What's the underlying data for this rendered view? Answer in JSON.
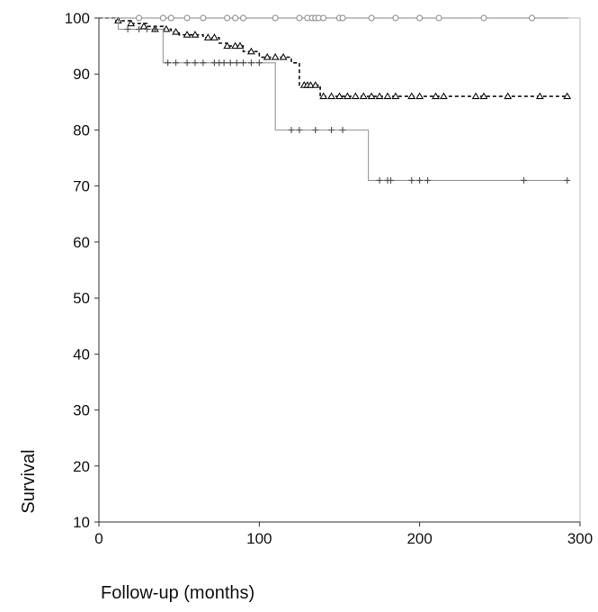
{
  "chart_data": {
    "type": "line",
    "subtype": "kaplan-meier",
    "title": "",
    "xlabel": "Follow-up (months)",
    "ylabel": "Survival",
    "xlim": [
      0,
      300
    ],
    "ylim": [
      10,
      100
    ],
    "xticks": [
      "0",
      "100",
      "200",
      "300"
    ],
    "yticks": [
      "10",
      "20",
      "30",
      "40",
      "50",
      "60",
      "70",
      "80",
      "90",
      "100"
    ],
    "grid": false,
    "legend": "none",
    "series": [
      {
        "marker": "circle-open",
        "color": "#888888",
        "dash": "none",
        "steps": [
          [
            0,
            100
          ],
          [
            293,
            100
          ]
        ],
        "censored": [
          [
            25,
            100
          ],
          [
            40,
            100
          ],
          [
            45,
            100
          ],
          [
            55,
            100
          ],
          [
            65,
            100
          ],
          [
            80,
            100
          ],
          [
            85,
            100
          ],
          [
            90,
            100
          ],
          [
            110,
            100
          ],
          [
            125,
            100
          ],
          [
            130,
            100
          ],
          [
            133,
            100
          ],
          [
            135,
            100
          ],
          [
            137,
            100
          ],
          [
            140,
            100
          ],
          [
            150,
            100
          ],
          [
            152,
            100
          ],
          [
            170,
            100
          ],
          [
            185,
            100
          ],
          [
            200,
            100
          ],
          [
            212,
            100
          ],
          [
            240,
            100
          ],
          [
            270,
            100
          ]
        ]
      },
      {
        "marker": "triangle-open",
        "color": "#111111",
        "dash": "4,3",
        "steps": [
          [
            0,
            100
          ],
          [
            10,
            99.5
          ],
          [
            20,
            99
          ],
          [
            30,
            98.5
          ],
          [
            40,
            98
          ],
          [
            45,
            97.5
          ],
          [
            50,
            97
          ],
          [
            65,
            96.5
          ],
          [
            75,
            95.5
          ],
          [
            80,
            95
          ],
          [
            90,
            94
          ],
          [
            100,
            93
          ],
          [
            120,
            92
          ],
          [
            125,
            88
          ],
          [
            138,
            86
          ],
          [
            293,
            86
          ]
        ],
        "censored": [
          [
            12,
            99.5
          ],
          [
            20,
            99
          ],
          [
            28,
            98.5
          ],
          [
            35,
            98
          ],
          [
            42,
            98
          ],
          [
            48,
            97.5
          ],
          [
            55,
            97
          ],
          [
            60,
            97
          ],
          [
            68,
            96.5
          ],
          [
            72,
            96.5
          ],
          [
            80,
            95
          ],
          [
            85,
            95
          ],
          [
            88,
            95
          ],
          [
            95,
            94
          ],
          [
            105,
            93
          ],
          [
            110,
            93
          ],
          [
            115,
            93
          ],
          [
            128,
            88
          ],
          [
            130,
            88
          ],
          [
            132,
            88
          ],
          [
            135,
            88
          ],
          [
            140,
            86
          ],
          [
            145,
            86
          ],
          [
            150,
            86
          ],
          [
            155,
            86
          ],
          [
            160,
            86
          ],
          [
            165,
            86
          ],
          [
            170,
            86
          ],
          [
            175,
            86
          ],
          [
            180,
            86
          ],
          [
            185,
            86
          ],
          [
            195,
            86
          ],
          [
            200,
            86
          ],
          [
            210,
            86
          ],
          [
            215,
            86
          ],
          [
            235,
            86
          ],
          [
            240,
            86
          ],
          [
            255,
            86
          ],
          [
            275,
            86
          ],
          [
            292,
            86
          ]
        ]
      },
      {
        "marker": "plus",
        "color": "#999999",
        "dash": "none",
        "steps": [
          [
            0,
            100
          ],
          [
            12,
            98
          ],
          [
            40,
            92
          ],
          [
            110,
            80
          ],
          [
            168,
            71
          ],
          [
            293,
            71
          ]
        ],
        "censored": [
          [
            18,
            98
          ],
          [
            25,
            98
          ],
          [
            30,
            98
          ],
          [
            35,
            98
          ],
          [
            43,
            92
          ],
          [
            48,
            92
          ],
          [
            55,
            92
          ],
          [
            60,
            92
          ],
          [
            65,
            92
          ],
          [
            72,
            92
          ],
          [
            75,
            92
          ],
          [
            78,
            92
          ],
          [
            82,
            92
          ],
          [
            86,
            92
          ],
          [
            90,
            92
          ],
          [
            95,
            92
          ],
          [
            100,
            92
          ],
          [
            120,
            80
          ],
          [
            125,
            80
          ],
          [
            135,
            80
          ],
          [
            145,
            80
          ],
          [
            152,
            80
          ],
          [
            175,
            71
          ],
          [
            180,
            71
          ],
          [
            182,
            71
          ],
          [
            195,
            71
          ],
          [
            200,
            71
          ],
          [
            205,
            71
          ],
          [
            265,
            71
          ],
          [
            292,
            71
          ]
        ]
      }
    ]
  }
}
